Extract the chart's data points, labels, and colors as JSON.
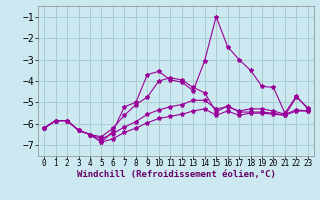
{
  "bg_color": "#cce8f0",
  "grid_color": "#aacccc",
  "line_color": "#990099",
  "x": [
    0,
    1,
    2,
    3,
    4,
    5,
    6,
    7,
    8,
    9,
    10,
    11,
    12,
    13,
    14,
    15,
    16,
    17,
    18,
    19,
    20,
    21,
    22,
    23
  ],
  "line1": [
    -6.2,
    -5.85,
    -5.85,
    -6.3,
    -6.5,
    -6.85,
    -6.35,
    -5.2,
    -5.0,
    -3.7,
    -3.55,
    -3.95,
    -4.05,
    -4.45,
    -3.05,
    -1.0,
    -2.4,
    -3.0,
    -3.5,
    -4.25,
    -4.3,
    -5.5,
    -4.7,
    -5.3
  ],
  "line2": [
    -6.2,
    -5.85,
    -5.85,
    -6.3,
    -6.5,
    -6.6,
    -6.2,
    -5.6,
    -5.1,
    -4.75,
    -4.0,
    -3.85,
    -3.95,
    -4.3,
    -4.55,
    -5.45,
    -5.15,
    -5.45,
    -5.45,
    -5.45,
    -5.5,
    -5.6,
    -4.75,
    -5.25
  ],
  "line3": [
    -6.2,
    -5.85,
    -5.85,
    -6.3,
    -6.5,
    -6.7,
    -6.45,
    -6.15,
    -5.9,
    -5.55,
    -5.35,
    -5.2,
    -5.1,
    -4.9,
    -4.9,
    -5.3,
    -5.2,
    -5.4,
    -5.3,
    -5.3,
    -5.4,
    -5.55,
    -5.35,
    -5.4
  ],
  "line4": [
    -6.2,
    -5.85,
    -5.85,
    -6.3,
    -6.5,
    -6.85,
    -6.7,
    -6.4,
    -6.2,
    -5.95,
    -5.75,
    -5.65,
    -5.55,
    -5.4,
    -5.3,
    -5.6,
    -5.4,
    -5.6,
    -5.5,
    -5.5,
    -5.55,
    -5.6,
    -5.4,
    -5.4
  ],
  "ylim": [
    -7.5,
    -0.5
  ],
  "xlim": [
    -0.5,
    23.5
  ],
  "yticks": [
    -7,
    -6,
    -5,
    -4,
    -3,
    -2,
    -1
  ],
  "xticks": [
    0,
    1,
    2,
    3,
    4,
    5,
    6,
    7,
    8,
    9,
    10,
    11,
    12,
    13,
    14,
    15,
    16,
    17,
    18,
    19,
    20,
    21,
    22,
    23
  ],
  "xlabel": "Windchill (Refroidissement éolien,°C)",
  "xlabel_fontsize": 6.5,
  "ytick_fontsize": 7,
  "xtick_fontsize": 5.5
}
